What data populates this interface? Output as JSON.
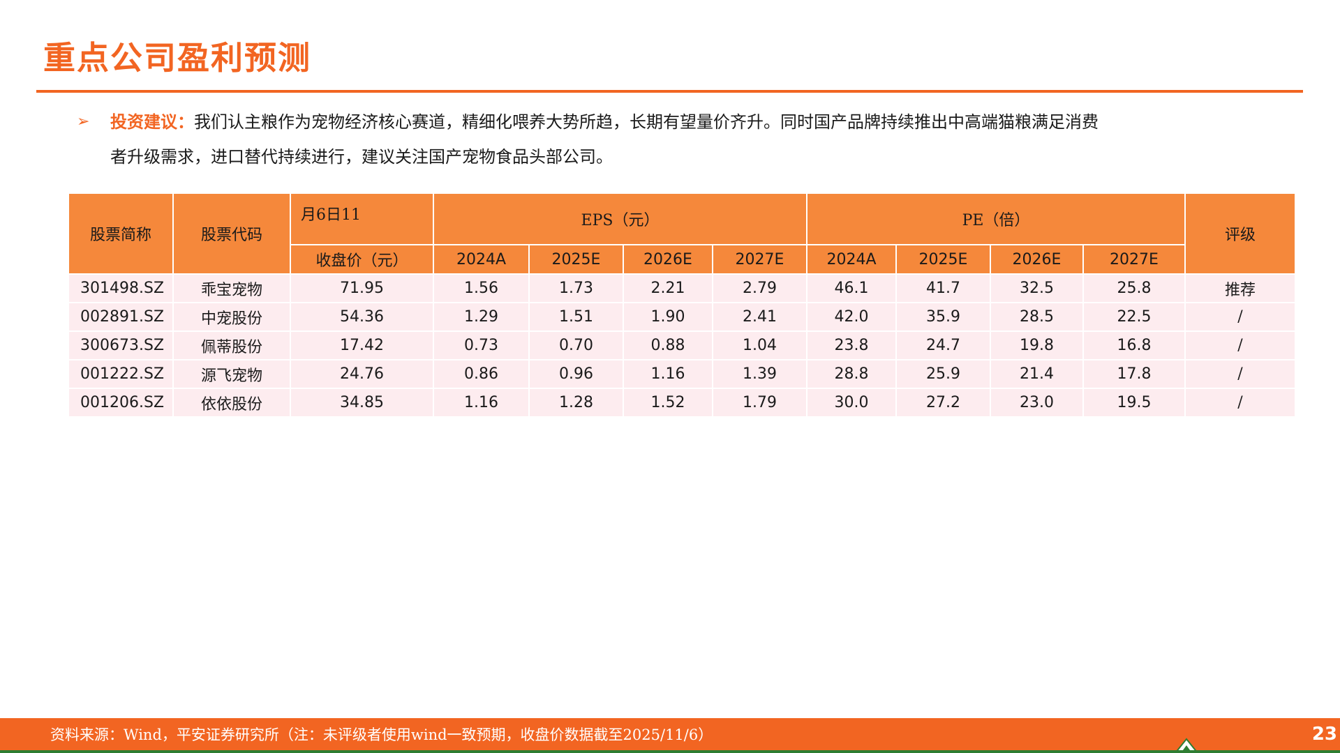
{
  "title": "重点公司盈利预测",
  "advice": {
    "label": "投资建议：",
    "line1": "我们认主粮作为宠物经济核心赛道，精细化喂养大势所趋，长期有望量价齐升。同时国产品牌持续推出中高端猫粮满足消费",
    "line2": "者升级需求，进口替代持续进行，建议关注国产宠物食品头部公司。"
  },
  "table": {
    "headers": {
      "name": "股票简称",
      "code": "股票代码",
      "date": "月6日11",
      "price": "收盘价（元）",
      "eps": "EPS（元）",
      "pe": "PE（倍）",
      "rating": "评级",
      "years": [
        "2024A",
        "2025E",
        "2026E",
        "2027E"
      ]
    },
    "rows": [
      {
        "code": "301498.SZ",
        "name": "乖宝宠物",
        "price": "71.95",
        "eps": [
          "1.56",
          "1.73",
          "2.21",
          "2.79"
        ],
        "pe": [
          "46.1",
          "41.7",
          "32.5",
          "25.8"
        ],
        "rating": "推荐"
      },
      {
        "code": "002891.SZ",
        "name": "中宠股份",
        "price": "54.36",
        "eps": [
          "1.29",
          "1.51",
          "1.90",
          "2.41"
        ],
        "pe": [
          "42.0",
          "35.9",
          "28.5",
          "22.5"
        ],
        "rating": "/"
      },
      {
        "code": "300673.SZ",
        "name": "佩蒂股份",
        "price": "17.42",
        "eps": [
          "0.73",
          "0.70",
          "0.88",
          "1.04"
        ],
        "pe": [
          "23.8",
          "24.7",
          "19.8",
          "16.8"
        ],
        "rating": "/"
      },
      {
        "code": "001222.SZ",
        "name": "源飞宠物",
        "price": "24.76",
        "eps": [
          "0.86",
          "0.96",
          "1.16",
          "1.39"
        ],
        "pe": [
          "28.8",
          "25.9",
          "21.4",
          "17.8"
        ],
        "rating": "/"
      },
      {
        "code": "001206.SZ",
        "name": "依依股份",
        "price": "34.85",
        "eps": [
          "1.16",
          "1.28",
          "1.52",
          "1.79"
        ],
        "pe": [
          "30.0",
          "27.2",
          "23.0",
          "19.5"
        ],
        "rating": "/"
      }
    ]
  },
  "footer": {
    "source": "资料来源：Wind，平安证券研究所（注：未评级者使用wind一致预期，收盘价数据截至2025/11/6）",
    "page_number": "23"
  },
  "colors": {
    "accent": "#f26522",
    "header_fill": "#f5883b",
    "row_fill": "#fdecef",
    "logo_green": "#2e7d32"
  }
}
